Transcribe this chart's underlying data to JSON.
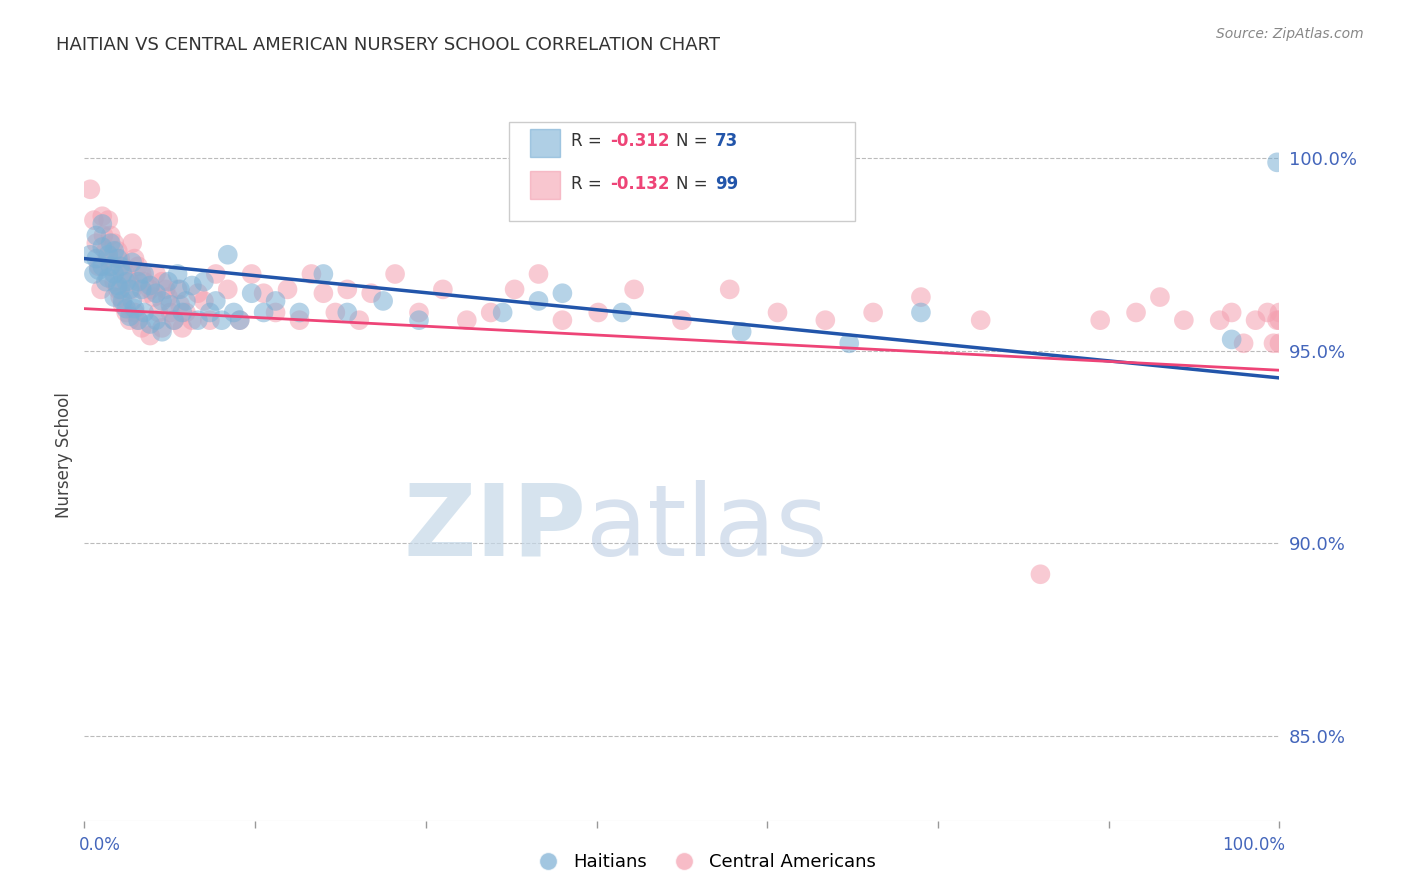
{
  "title": "HAITIAN VS CENTRAL AMERICAN NURSERY SCHOOL CORRELATION CHART",
  "source": "Source: ZipAtlas.com",
  "ylabel": "Nursery School",
  "yticks": [
    0.85,
    0.9,
    0.95,
    1.0
  ],
  "ytick_labels": [
    "85.0%",
    "90.0%",
    "95.0%",
    "100.0%"
  ],
  "xlim": [
    0.0,
    1.0
  ],
  "ylim": [
    0.828,
    1.018
  ],
  "blue_R": -0.312,
  "blue_N": 73,
  "pink_R": -0.132,
  "pink_N": 99,
  "blue_color": "#7BAFD4",
  "pink_color": "#F4A0B0",
  "blue_line_color": "#2255AA",
  "pink_line_color": "#EE4477",
  "watermark_zip": "ZIP",
  "watermark_atlas": "atlas",
  "watermark_color_zip": "#C8D8E8",
  "watermark_color_atlas": "#B8CCE0",
  "background_color": "#FFFFFF",
  "grid_color": "#BBBBBB",
  "tick_label_color": "#4466BB",
  "title_color": "#333333",
  "legend_R_color": "#EE4477",
  "legend_N_color": "#2255AA",
  "blue_line_start_y": 0.974,
  "blue_line_end_y": 0.943,
  "pink_line_start_y": 0.961,
  "pink_line_end_y": 0.945,
  "blue_scatter_x": [
    0.005,
    0.008,
    0.01,
    0.01,
    0.012,
    0.015,
    0.015,
    0.015,
    0.018,
    0.02,
    0.02,
    0.022,
    0.022,
    0.025,
    0.025,
    0.025,
    0.028,
    0.028,
    0.03,
    0.03,
    0.032,
    0.032,
    0.035,
    0.035,
    0.038,
    0.038,
    0.04,
    0.04,
    0.042,
    0.045,
    0.045,
    0.048,
    0.05,
    0.05,
    0.055,
    0.055,
    0.06,
    0.06,
    0.065,
    0.065,
    0.07,
    0.072,
    0.075,
    0.078,
    0.08,
    0.082,
    0.085,
    0.09,
    0.095,
    0.1,
    0.105,
    0.11,
    0.115,
    0.12,
    0.125,
    0.13,
    0.14,
    0.15,
    0.16,
    0.18,
    0.2,
    0.22,
    0.25,
    0.28,
    0.35,
    0.38,
    0.4,
    0.45,
    0.55,
    0.64,
    0.7,
    0.96,
    0.998
  ],
  "blue_scatter_y": [
    0.975,
    0.97,
    0.98,
    0.974,
    0.971,
    0.983,
    0.977,
    0.972,
    0.968,
    0.975,
    0.969,
    0.978,
    0.972,
    0.976,
    0.97,
    0.964,
    0.974,
    0.967,
    0.972,
    0.966,
    0.97,
    0.963,
    0.968,
    0.961,
    0.966,
    0.959,
    0.973,
    0.963,
    0.961,
    0.968,
    0.958,
    0.966,
    0.97,
    0.96,
    0.967,
    0.957,
    0.965,
    0.958,
    0.963,
    0.955,
    0.968,
    0.962,
    0.958,
    0.97,
    0.966,
    0.96,
    0.963,
    0.967,
    0.958,
    0.968,
    0.96,
    0.963,
    0.958,
    0.975,
    0.96,
    0.958,
    0.965,
    0.96,
    0.963,
    0.96,
    0.97,
    0.96,
    0.963,
    0.958,
    0.96,
    0.963,
    0.965,
    0.96,
    0.955,
    0.952,
    0.96,
    0.953,
    0.999
  ],
  "pink_scatter_x": [
    0.005,
    0.008,
    0.01,
    0.012,
    0.014,
    0.015,
    0.016,
    0.018,
    0.02,
    0.02,
    0.022,
    0.022,
    0.025,
    0.025,
    0.028,
    0.028,
    0.03,
    0.03,
    0.032,
    0.032,
    0.035,
    0.035,
    0.038,
    0.038,
    0.04,
    0.04,
    0.042,
    0.042,
    0.045,
    0.045,
    0.048,
    0.048,
    0.05,
    0.052,
    0.055,
    0.055,
    0.058,
    0.06,
    0.062,
    0.065,
    0.065,
    0.068,
    0.07,
    0.072,
    0.075,
    0.078,
    0.08,
    0.082,
    0.085,
    0.09,
    0.095,
    0.1,
    0.105,
    0.11,
    0.12,
    0.13,
    0.14,
    0.15,
    0.16,
    0.17,
    0.18,
    0.19,
    0.2,
    0.21,
    0.22,
    0.23,
    0.24,
    0.26,
    0.28,
    0.3,
    0.32,
    0.34,
    0.36,
    0.38,
    0.4,
    0.43,
    0.46,
    0.5,
    0.54,
    0.58,
    0.62,
    0.66,
    0.7,
    0.75,
    0.8,
    0.85,
    0.88,
    0.9,
    0.92,
    0.95,
    0.96,
    0.97,
    0.98,
    0.99,
    0.995,
    0.998,
    1.0,
    1.0,
    1.0
  ],
  "pink_scatter_y": [
    0.992,
    0.984,
    0.978,
    0.972,
    0.966,
    0.985,
    0.98,
    0.976,
    0.984,
    0.974,
    0.98,
    0.972,
    0.978,
    0.968,
    0.976,
    0.966,
    0.974,
    0.964,
    0.972,
    0.962,
    0.97,
    0.96,
    0.968,
    0.958,
    0.978,
    0.966,
    0.974,
    0.96,
    0.972,
    0.958,
    0.97,
    0.956,
    0.968,
    0.965,
    0.966,
    0.954,
    0.964,
    0.97,
    0.96,
    0.968,
    0.956,
    0.966,
    0.964,
    0.96,
    0.958,
    0.966,
    0.962,
    0.956,
    0.96,
    0.958,
    0.965,
    0.963,
    0.958,
    0.97,
    0.966,
    0.958,
    0.97,
    0.965,
    0.96,
    0.966,
    0.958,
    0.97,
    0.965,
    0.96,
    0.966,
    0.958,
    0.965,
    0.97,
    0.96,
    0.966,
    0.958,
    0.96,
    0.966,
    0.97,
    0.958,
    0.96,
    0.966,
    0.958,
    0.966,
    0.96,
    0.958,
    0.96,
    0.964,
    0.958,
    0.892,
    0.958,
    0.96,
    0.964,
    0.958,
    0.958,
    0.96,
    0.952,
    0.958,
    0.96,
    0.952,
    0.958,
    0.958,
    0.96,
    0.952
  ]
}
